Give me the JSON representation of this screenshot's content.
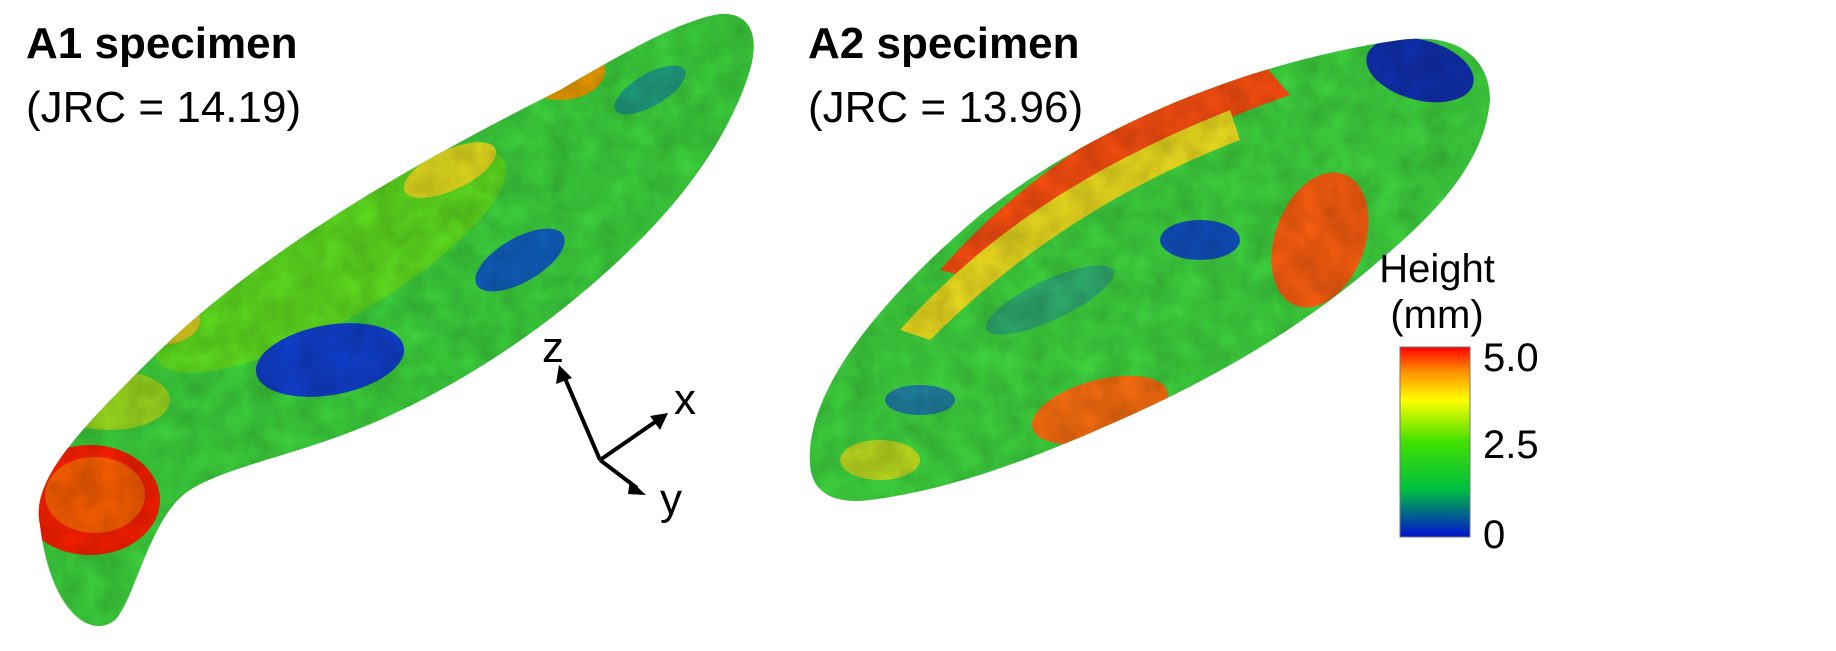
{
  "specimens": [
    {
      "title": "A1 specimen",
      "jrc": "(JRC = 14.19)"
    },
    {
      "title": "A2 specimen",
      "jrc": "(JRC = 13.96)"
    }
  ],
  "axes": {
    "z": "z",
    "x": "x",
    "y": "y"
  },
  "legend": {
    "title_line1": "Height",
    "title_line2": "(mm)",
    "ticks": [
      "5.0",
      "2.5",
      "0"
    ],
    "colors": [
      "#ff0000",
      "#ffff00",
      "#00e000",
      "#0000ff"
    ]
  }
}
